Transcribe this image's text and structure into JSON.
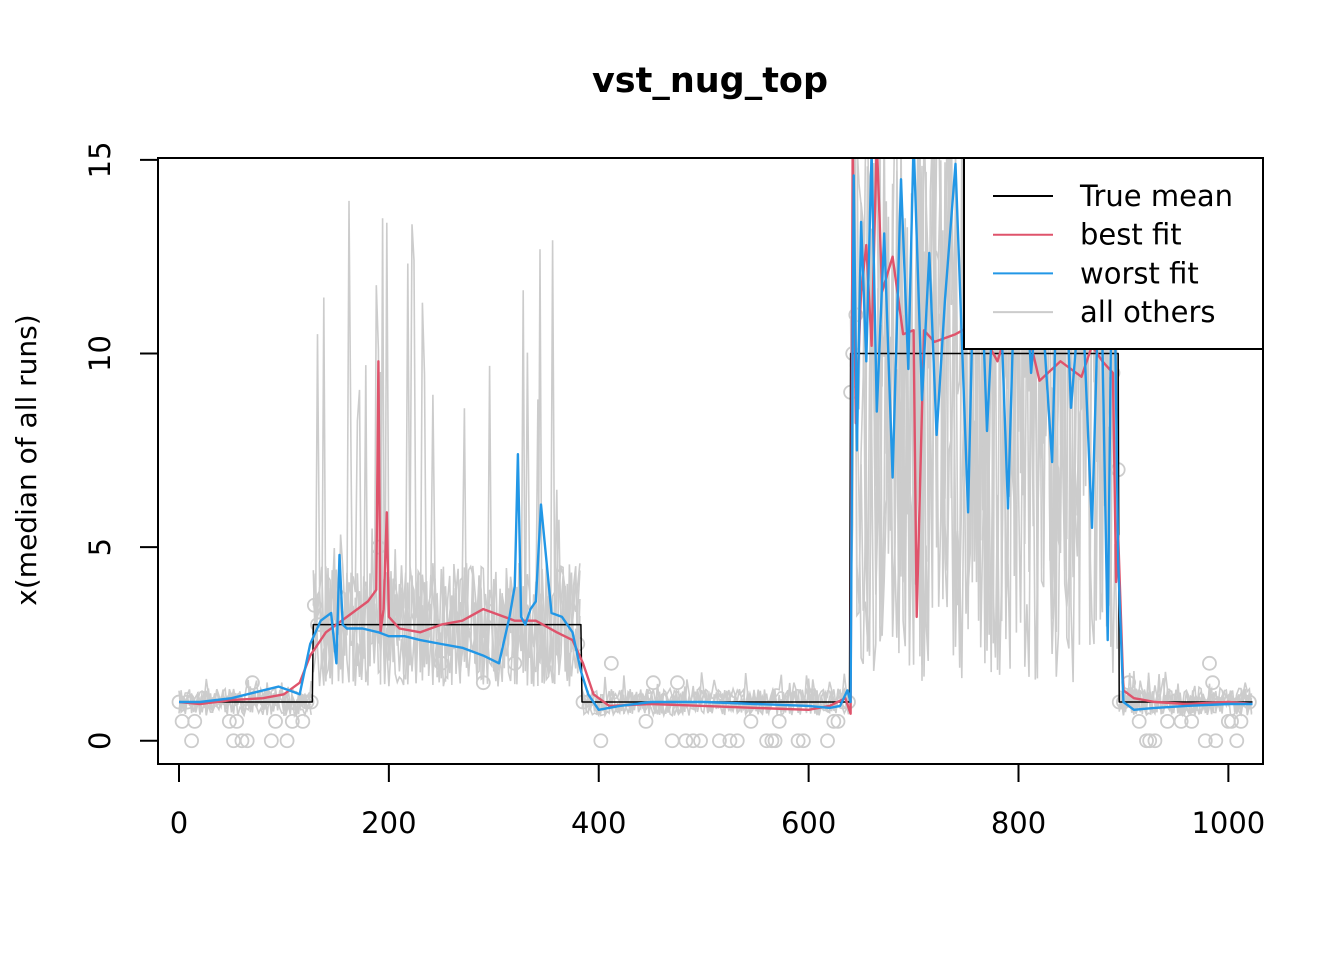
{
  "chart_data": {
    "type": "line",
    "title": "vst_nug_top",
    "xlabel": "",
    "ylabel": "x(median of all runs)",
    "xlim": [
      -20,
      1033
    ],
    "ylim": [
      -0.6,
      15.05
    ],
    "xticks": [
      0,
      200,
      400,
      600,
      800,
      1000
    ],
    "yticks": [
      0,
      5,
      10,
      15
    ],
    "x_tick_labels": [
      "0",
      "200",
      "400",
      "600",
      "800",
      "1000"
    ],
    "y_tick_labels": [
      "0",
      "5",
      "10",
      "15"
    ],
    "grid": false,
    "legend_position": "top-right",
    "legend": [
      {
        "label": "True mean",
        "color": "#000000"
      },
      {
        "label": "best fit",
        "color": "#DF536B"
      },
      {
        "label": "worst fit",
        "color": "#2297E6"
      },
      {
        "label": "all others",
        "color": "#CCCCCC"
      }
    ],
    "series": [
      {
        "name": "True mean",
        "color": "#000000",
        "x": [
          0,
          127,
          128,
          383,
          384,
          639,
          640,
          895,
          896,
          1023
        ],
        "values": [
          1,
          1,
          3,
          3,
          1,
          1,
          10,
          10,
          1,
          1
        ]
      },
      {
        "name": "best fit",
        "color": "#DF536B",
        "x": [
          0,
          20,
          50,
          80,
          100,
          115,
          125,
          140,
          160,
          180,
          188,
          190,
          192,
          195,
          198,
          200,
          210,
          230,
          250,
          270,
          290,
          300,
          320,
          340,
          360,
          375,
          385,
          395,
          410,
          450,
          500,
          550,
          600,
          620,
          635,
          640,
          642,
          645,
          650,
          655,
          660,
          665,
          670,
          680,
          690,
          700,
          703,
          710,
          720,
          740,
          760,
          780,
          800,
          820,
          840,
          860,
          870,
          880,
          890,
          893,
          895,
          900,
          910,
          930,
          960,
          1000,
          1023
        ],
        "values": [
          1,
          0.95,
          1.05,
          1.1,
          1.2,
          1.5,
          2.2,
          2.8,
          3.2,
          3.6,
          3.9,
          9.8,
          2.8,
          3.4,
          5.9,
          3.2,
          2.9,
          2.8,
          3.0,
          3.1,
          3.4,
          3.3,
          3.1,
          3.1,
          2.8,
          2.6,
          2.0,
          1.2,
          0.9,
          0.95,
          0.9,
          0.85,
          0.8,
          0.9,
          1.1,
          0.7,
          15.5,
          8.2,
          11.6,
          12.8,
          10.2,
          15.5,
          11.6,
          12.5,
          10.5,
          10.6,
          3.2,
          10.6,
          10.3,
          10.5,
          10.8,
          9.8,
          11.6,
          9.3,
          9.8,
          9.4,
          10.2,
          9.8,
          9.5,
          4.1,
          5.3,
          1.3,
          1.1,
          1.0,
          0.95,
          1.0,
          0.95
        ]
      },
      {
        "name": "worst fit",
        "color": "#2297E6",
        "x": [
          0,
          20,
          50,
          80,
          95,
          105,
          115,
          125,
          135,
          145,
          150,
          153,
          156,
          160,
          175,
          190,
          200,
          215,
          230,
          250,
          270,
          290,
          305,
          315,
          320,
          323,
          326,
          330,
          335,
          340,
          345,
          355,
          365,
          375,
          383,
          390,
          400,
          420,
          450,
          500,
          550,
          600,
          620,
          630,
          637,
          640,
          643,
          646,
          650,
          655,
          660,
          665,
          672,
          680,
          688,
          695,
          700,
          708,
          715,
          722,
          730,
          740,
          752,
          760,
          770,
          780,
          790,
          800,
          812,
          820,
          832,
          840,
          850,
          860,
          870,
          878,
          885,
          890,
          895,
          900,
          910,
          930,
          960,
          1000,
          1023
        ],
        "values": [
          1,
          1.0,
          1.1,
          1.3,
          1.4,
          1.3,
          1.2,
          2.5,
          3.1,
          3.3,
          2.0,
          4.8,
          3.0,
          2.9,
          2.9,
          2.8,
          2.7,
          2.7,
          2.6,
          2.5,
          2.4,
          2.2,
          2.0,
          3.2,
          4.0,
          7.4,
          3.2,
          3.0,
          3.4,
          3.6,
          6.1,
          3.3,
          3.2,
          2.8,
          1.8,
          1.2,
          0.8,
          0.9,
          1.0,
          1.0,
          0.95,
          0.9,
          0.85,
          0.9,
          1.3,
          1.0,
          14.6,
          7.5,
          13.4,
          9.8,
          15.2,
          8.5,
          13.1,
          6.8,
          14.5,
          9.6,
          15.5,
          8.8,
          12.6,
          7.9,
          11.4,
          14.9,
          5.9,
          15.5,
          8.0,
          13.6,
          6.0,
          15.4,
          9.5,
          12.2,
          7.2,
          15.5,
          8.6,
          12.0,
          5.5,
          13.3,
          2.6,
          15.2,
          4.6,
          1.0,
          0.8,
          0.85,
          0.9,
          0.95,
          0.95
        ]
      },
      {
        "name": "all others",
        "color": "#CCCCCC",
        "segments": [
          {
            "x_start": 0,
            "x_end": 127,
            "center": 1.0,
            "spread": 0.35,
            "max_spike": 1.6
          },
          {
            "x_start": 128,
            "x_end": 383,
            "center": 3.0,
            "spread": 1.6,
            "max_spike": 14.1
          },
          {
            "x_start": 384,
            "x_end": 639,
            "center": 1.0,
            "spread": 0.35,
            "max_spike": 1.8
          },
          {
            "x_start": 640,
            "x_end": 895,
            "center": 9.0,
            "spread": 7.5,
            "max_spike": 15.5
          },
          {
            "x_start": 896,
            "x_end": 1023,
            "center": 1.0,
            "spread": 0.35,
            "max_spike": 1.8
          }
        ]
      }
    ],
    "observations": {
      "x": [
        0,
        3,
        8,
        12,
        15,
        48,
        52,
        55,
        60,
        65,
        70,
        88,
        92,
        103,
        108,
        118,
        122,
        126,
        129,
        132,
        135,
        140,
        190,
        250,
        290,
        320,
        380,
        385,
        402,
        412,
        445,
        452,
        470,
        475,
        483,
        490,
        497,
        515,
        525,
        532,
        545,
        560,
        565,
        568,
        572,
        590,
        595,
        618,
        624,
        628,
        633,
        638,
        640,
        642,
        645,
        890,
        895,
        896,
        900,
        905,
        915,
        922,
        925,
        930,
        942,
        955,
        965,
        978,
        982,
        985,
        988,
        1000,
        1003,
        1008,
        1012,
        1020
      ],
      "values": [
        1,
        0.5,
        1,
        0,
        0.5,
        0.5,
        0,
        0.5,
        0,
        0,
        1.5,
        0,
        0.5,
        0,
        0.5,
        0.5,
        1,
        1,
        3.5,
        3,
        3,
        3,
        5,
        2,
        1.5,
        2,
        2.5,
        1,
        0,
        2,
        0.5,
        1.5,
        0,
        1.5,
        0,
        0,
        0,
        0,
        0,
        0,
        0.5,
        0,
        0,
        0,
        0.5,
        0,
        0,
        0,
        0.5,
        0.5,
        1,
        1,
        9,
        10,
        11,
        9.5,
        7,
        1,
        1,
        1.5,
        0.5,
        0,
        0,
        0,
        0.5,
        0.5,
        0.5,
        0,
        2,
        1.5,
        0,
        0.5,
        0.5,
        0,
        0.5,
        1
      ]
    }
  }
}
